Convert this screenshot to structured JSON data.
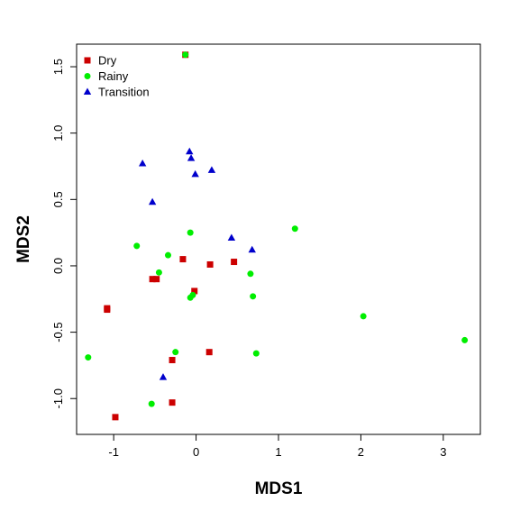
{
  "chart_data": {
    "type": "scatter",
    "xlabel": "MDS1",
    "ylabel": "MDS2",
    "xlim": [
      -1.45,
      3.45
    ],
    "ylim": [
      -1.27,
      1.67
    ],
    "xticks": [
      -1,
      0,
      1,
      2,
      3
    ],
    "yticks": [
      -1.0,
      -0.5,
      0.0,
      0.5,
      1.0,
      1.5
    ],
    "xtick_labels": [
      "-1",
      "0",
      "1",
      "2",
      "3"
    ],
    "ytick_labels": [
      "-1.0",
      "-0.5",
      "0.0",
      "0.5",
      "1.0",
      "1.5"
    ],
    "grid": false,
    "legend_position": "top-left",
    "series": [
      {
        "name": "Dry",
        "marker": "square",
        "color": "#CC0000",
        "points": [
          [
            -0.13,
            1.59
          ],
          [
            -0.16,
            0.05
          ],
          [
            0.17,
            0.01
          ],
          [
            0.46,
            0.03
          ],
          [
            -0.53,
            -0.1
          ],
          [
            -0.48,
            -0.1
          ],
          [
            -0.02,
            -0.19
          ],
          [
            -1.08,
            -0.32
          ],
          [
            -1.08,
            -0.33
          ],
          [
            0.16,
            -0.65
          ],
          [
            -0.29,
            -0.71
          ],
          [
            -0.29,
            -1.03
          ],
          [
            -0.98,
            -1.14
          ]
        ]
      },
      {
        "name": "Rainy",
        "marker": "circle",
        "color": "#00EE00",
        "points": [
          [
            -0.13,
            1.59
          ],
          [
            1.2,
            0.28
          ],
          [
            -0.07,
            0.25
          ],
          [
            -0.72,
            0.15
          ],
          [
            -0.34,
            0.08
          ],
          [
            -0.45,
            -0.05
          ],
          [
            0.66,
            -0.06
          ],
          [
            0.69,
            -0.23
          ],
          [
            -0.04,
            -0.22
          ],
          [
            -0.07,
            -0.24
          ],
          [
            2.03,
            -0.38
          ],
          [
            3.26,
            -0.56
          ],
          [
            -0.25,
            -0.65
          ],
          [
            0.73,
            -0.66
          ],
          [
            -1.31,
            -0.69
          ],
          [
            -0.54,
            -1.04
          ]
        ]
      },
      {
        "name": "Transition",
        "marker": "triangle",
        "color": "#0000CC",
        "points": [
          [
            -0.08,
            0.86
          ],
          [
            -0.06,
            0.81
          ],
          [
            -0.65,
            0.77
          ],
          [
            0.19,
            0.72
          ],
          [
            -0.01,
            0.69
          ],
          [
            -0.53,
            0.48
          ],
          [
            0.43,
            0.21
          ],
          [
            0.68,
            0.12
          ],
          [
            -0.4,
            -0.84
          ]
        ]
      }
    ]
  }
}
